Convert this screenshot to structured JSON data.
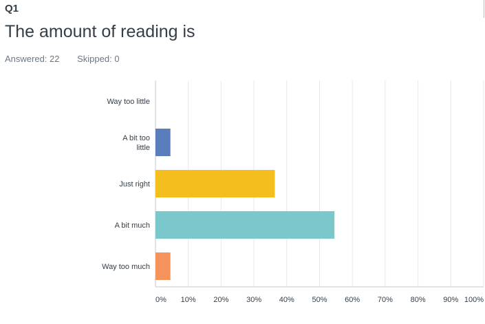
{
  "question": {
    "number": "Q1",
    "title": "The amount of reading is",
    "answered": "Answered: 22",
    "skipped": "Skipped: 0"
  },
  "colors": {
    "grid": "#e6e8ea",
    "axis": "#c4c8cd",
    "text": "#333e48"
  },
  "chart_data": {
    "type": "bar",
    "orientation": "horizontal",
    "categories": [
      "Way too little",
      "A bit too little",
      "Just right",
      "A bit much",
      "Way too much"
    ],
    "category_lines": [
      [
        "Way too little"
      ],
      [
        "A bit too",
        "little"
      ],
      [
        "Just right"
      ],
      [
        "A bit much"
      ],
      [
        "Way too much"
      ]
    ],
    "values": [
      0,
      4.55,
      36.36,
      54.55,
      4.55
    ],
    "colors": [
      "#5a7ebd",
      "#5a7ebd",
      "#f4be1f",
      "#7ac8cc",
      "#f6925b"
    ],
    "xlim": [
      0,
      100
    ],
    "xticks": [
      "0%",
      "10%",
      "20%",
      "30%",
      "40%",
      "50%",
      "60%",
      "70%",
      "80%",
      "90%",
      "100%"
    ],
    "grid": true
  }
}
